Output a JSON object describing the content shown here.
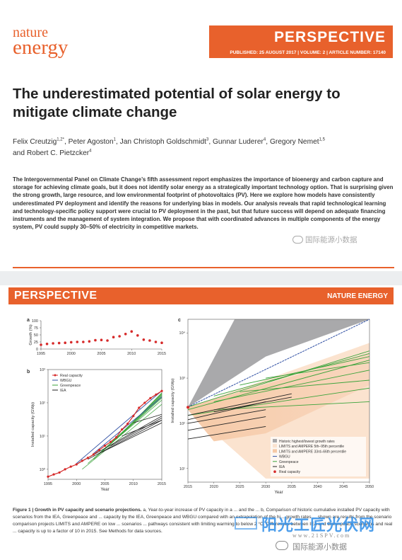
{
  "header": {
    "logo_line1": "nature",
    "logo_line2": "energy",
    "section": "PERSPECTIVE",
    "publication_line": "PUBLISHED: 25 AUGUST 2017 | VOLUME: 2 | ARTICLE NUMBER: 17140"
  },
  "article": {
    "title": "The underestimated potential of solar energy to mitigate climate change",
    "authors": [
      {
        "name": "Felix Creutzig",
        "sup": "1,2",
        "star": "*"
      },
      {
        "name": "Peter Agoston",
        "sup": "1"
      },
      {
        "name": "Jan Christoph Goldschmidt",
        "sup": "3"
      },
      {
        "name": "Gunnar Luderer",
        "sup": "4"
      },
      {
        "name": "Gregory Nemet",
        "sup": "1,5"
      },
      {
        "name": "Robert C. Pietzcker",
        "sup": "4"
      }
    ],
    "abstract": "The Intergovernmental Panel on Climate Change’s fifth assessment report emphasizes the importance of bioenergy and carbon capture and storage for achieving climate goals, but it does not identify solar energy as a strategically important technology option. That is surprising given the strong growth, large resource, and low environmental footprint of photovoltaics (PV). Here we explore how models have consistently underestimated PV deployment and identify the reasons for underlying bias in models. Our analysis reveals that rapid technological learning and technology-specific policy support were crucial to PV deployment in the past, but that future success will depend on adequate financing instruments and the management of system integration. We propose that with coordinated advances in multiple components of the energy system, PV could supply 30–50% of electricity in competitive markets."
  },
  "watermarks": {
    "top": "国际能源小数据",
    "bottom_big": "阳光工匠光伏网",
    "bottom_url": "www.21SPV.com",
    "bottom_cn": "国际能源小数据"
  },
  "page2": {
    "section": "PERSPECTIVE",
    "journal": "NATURE ENERGY"
  },
  "chart_data": [
    {
      "type": "scatter",
      "panel": "a",
      "ylabel": "Growth (%)",
      "xlabel": "",
      "xlim": [
        1995,
        2015
      ],
      "ylim": [
        0,
        100
      ],
      "yticks": [
        0,
        25,
        50,
        75,
        100
      ],
      "xticks": [
        1995,
        2000,
        2005,
        2010,
        2015
      ],
      "x": [
        1995,
        1996,
        1997,
        1998,
        1999,
        2000,
        2001,
        2002,
        2003,
        2004,
        2005,
        2006,
        2007,
        2008,
        2009,
        2010,
        2011,
        2012,
        2013,
        2014,
        2015
      ],
      "values": [
        15,
        18,
        20,
        21,
        22,
        24,
        25,
        25,
        27,
        31,
        32,
        30,
        42,
        45,
        53,
        62,
        48,
        33,
        30,
        25,
        22
      ],
      "color": "#d62a2a"
    },
    {
      "type": "line",
      "panel": "b",
      "xlabel": "Year",
      "ylabel": "Installed capacity (GWp)",
      "scale": "log",
      "xlim": [
        1995,
        2015
      ],
      "ylim": [
        0.5,
        1000
      ],
      "yticks": [
        "10⁰",
        "10¹",
        "10²",
        "10³"
      ],
      "xticks": [
        1995,
        2000,
        2005,
        2010,
        2015
      ],
      "legend": [
        "Real capacity",
        "WBGU",
        "Greenpeace",
        "IEA"
      ],
      "legend_placement": "top-left",
      "series": [
        {
          "name": "Real capacity",
          "color": "#d62a2a",
          "x": [
            1995,
            1996,
            1997,
            1998,
            1999,
            2000,
            2001,
            2002,
            2003,
            2004,
            2005,
            2006,
            2007,
            2008,
            2009,
            2010,
            2011,
            2012,
            2013,
            2014,
            2015
          ],
          "values": [
            0.6,
            0.7,
            0.8,
            1.0,
            1.2,
            1.4,
            1.8,
            2.2,
            2.8,
            3.8,
            5.1,
            6.7,
            9.2,
            15.8,
            23.5,
            40,
            71,
            100,
            138,
            177,
            227
          ]
        },
        {
          "name": "WBGU",
          "color": "#2f4fa3",
          "x": [
            2000,
            2015
          ],
          "values": [
            1.5,
            230
          ]
        },
        {
          "name": "Greenpeace",
          "color": "#3aa33a",
          "x": [
            2001,
            2015
          ],
          "values": [
            1.2,
            120
          ]
        },
        {
          "name": "IEA",
          "color": "#222222",
          "x": [
            2000,
            2015
          ],
          "values": [
            1.4,
            55
          ]
        }
      ]
    },
    {
      "type": "line",
      "panel": "c",
      "xlabel": "Year",
      "ylabel": "Installed capacity (GWp)",
      "scale": "log",
      "xlim": [
        2015,
        2050
      ],
      "ylim": [
        5,
        20000
      ],
      "yticks": [
        "10¹",
        "10²",
        "10³",
        "10⁴"
      ],
      "xticks": [
        2015,
        2020,
        2025,
        2030,
        2035,
        2040,
        2045,
        2050
      ],
      "legend": [
        "Historic highest/lowest growth rates",
        "LIMITS and AMPERE 5th–95th percentile",
        "LIMITS and AMPERE 33rd–66th percentile",
        "WBGU",
        "Greenpeace",
        "IEA",
        "Real capacity"
      ],
      "legend_placement": "bottom-right",
      "series": [
        {
          "name": "WBGU",
          "color": "#2f4fa3",
          "x": [
            2015,
            2050
          ],
          "values": [
            230,
            20000
          ]
        },
        {
          "name": "Real capacity",
          "color": "#d62a2a",
          "x": [
            2015
          ],
          "values": [
            227
          ]
        }
      ]
    }
  ],
  "figure": {
    "labels": {
      "a": "a",
      "b": "b",
      "c": "c"
    },
    "caption_label": "Figure 1 | Growth in PV capacity and scenario projections.",
    "caption_a": "a, Year-to-year increase of PV capacity in a ... and the ...",
    "caption_b": "b, Comparison of historic cumulative installed PV capacity with scenarios from the IEA, Greenpeace and ... capacity by the IEA, Greenpeace and WBGU compared with an extrapolation of the hi... growth rates ... shown are results from the scenario comparison projects LIMITS and AMPERE on low ... scenarios ... pathways consistent with limiting warming to below 2 °C. Differences between IEA and Greenpeace scenarios and real ... capacity is up to a factor of 10 in 2015. See Methods for data sources."
  }
}
